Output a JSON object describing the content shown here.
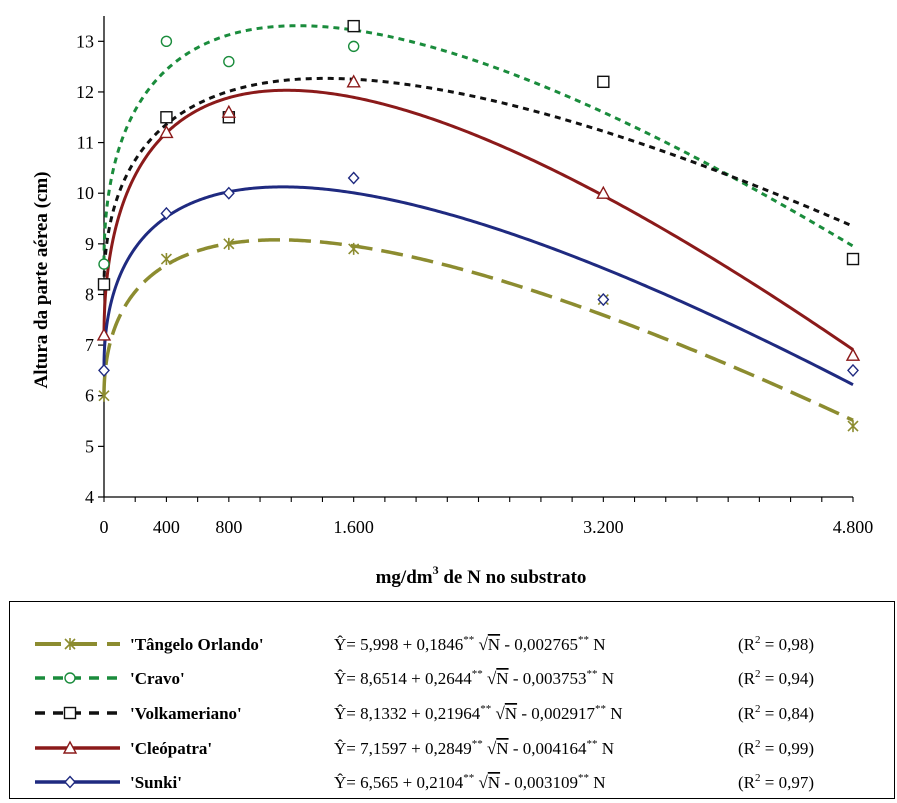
{
  "chart_data": {
    "type": "scatter",
    "title": "",
    "xlabel": "mg/dm³ de N no substrato",
    "xlabel_base": "mg/dm",
    "xlabel_sup": "3",
    "xlabel_rest": " de N no substrato",
    "ylabel": "Altura da parte aérea (cm)",
    "xlim": [
      0,
      4800
    ],
    "ylim": [
      4,
      13.5
    ],
    "x_ticks": [
      0,
      400,
      800,
      1600,
      3200,
      4800
    ],
    "x_tick_labels": [
      "0",
      "400",
      "800",
      "1.600",
      "3.200",
      "4.800"
    ],
    "y_ticks": [
      4,
      5,
      6,
      7,
      8,
      9,
      10,
      11,
      12,
      13
    ],
    "y_tick_labels": [
      "4",
      "5",
      "6",
      "7",
      "8",
      "9",
      "10",
      "11",
      "12",
      "13"
    ],
    "x": [
      0,
      400,
      800,
      1600,
      3200,
      4800
    ],
    "series": [
      {
        "name": "'Tângelo Orlando'",
        "color": "#8c8c30",
        "marker": "asterisk",
        "dash": "long-dash",
        "values": [
          6.0,
          8.7,
          9.0,
          8.9,
          7.9,
          5.4
        ],
        "model": {
          "a": 5.998,
          "b": 0.1846,
          "c": 0.002765
        },
        "equation": {
          "a": "5,998",
          "b": "0,1846",
          "c": "0,002765"
        },
        "r2": "0,98"
      },
      {
        "name": "'Cravo'",
        "color": "#1a8c3c",
        "marker": "circle",
        "dash": "short-dash",
        "values": [
          8.6,
          13.0,
          12.6,
          12.9,
          null,
          null
        ],
        "model": {
          "a": 8.6514,
          "b": 0.2644,
          "c": 0.003753
        },
        "equation": {
          "a": "8,6514",
          "b": "0,2644",
          "c": "0,003753"
        },
        "r2": "0,94"
      },
      {
        "name": "'Volkameriano'",
        "color": "#111111",
        "marker": "square",
        "dash": "short-dash",
        "values": [
          8.2,
          11.5,
          11.5,
          13.3,
          12.2,
          8.7
        ],
        "model": {
          "a": 8.1332,
          "b": 0.21964,
          "c": 0.002917
        },
        "equation": {
          "a": "8,1332",
          "b": "0,21964",
          "c": "0,002917"
        },
        "r2": "0,84"
      },
      {
        "name": "'Cleópatra'",
        "color": "#8b1a1a",
        "marker": "triangle",
        "dash": "solid",
        "values": [
          7.2,
          11.2,
          11.6,
          12.2,
          10.0,
          6.8
        ],
        "model": {
          "a": 7.1597,
          "b": 0.2849,
          "c": 0.004164
        },
        "equation": {
          "a": "7,1597",
          "b": "0,2849",
          "c": "0,004164"
        },
        "r2": "0,99"
      },
      {
        "name": "'Sunki'",
        "color": "#1f2a80",
        "marker": "diamond",
        "dash": "solid",
        "values": [
          6.5,
          9.6,
          10.0,
          10.3,
          7.9,
          6.5
        ],
        "model": {
          "a": 6.565,
          "b": 0.2104,
          "c": 0.003109
        },
        "equation": {
          "a": "6,565",
          "b": "0,2104",
          "c": "0,003109"
        },
        "r2": "0,97"
      }
    ],
    "legend_position": "bottom",
    "grid": false
  }
}
